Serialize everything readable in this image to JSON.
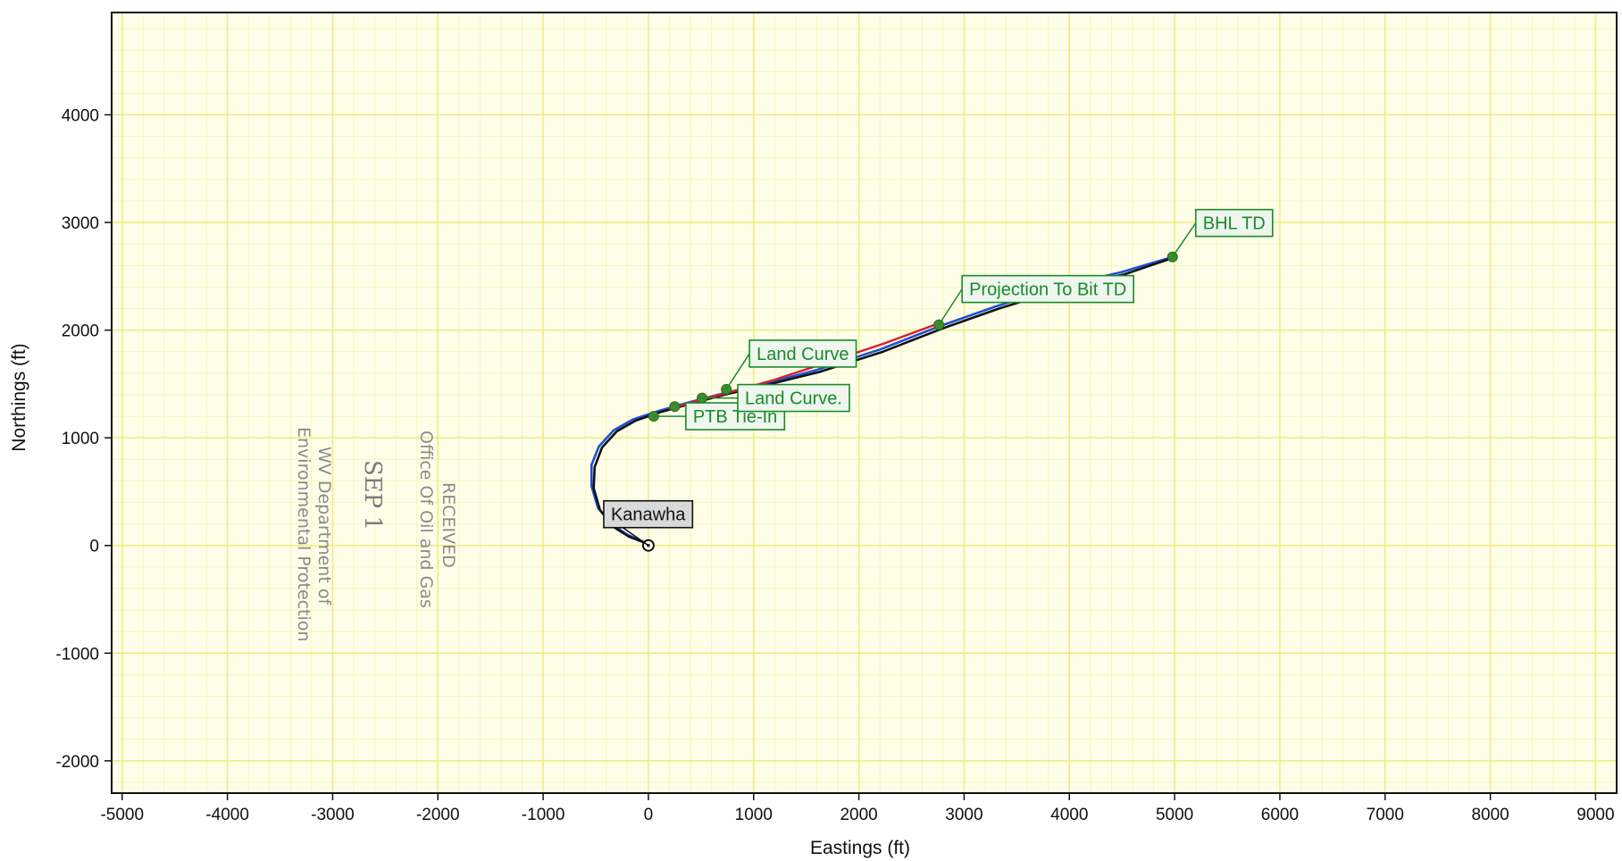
{
  "chart_data": {
    "type": "line",
    "xlabel": "Eastings (ft)",
    "ylabel": "Northings (ft)",
    "xlim": [
      -5100,
      9200
    ],
    "ylim": [
      -2300,
      4950
    ],
    "x_ticks": [
      -5000,
      -4000,
      -3000,
      -2000,
      -1000,
      0,
      1000,
      2000,
      3000,
      4000,
      5000,
      6000,
      7000,
      8000,
      9000
    ],
    "y_ticks": [
      -2000,
      -1000,
      0,
      1000,
      2000,
      3000,
      4000
    ],
    "grid": true,
    "series": [
      {
        "color": "#1d4fd6",
        "points": [
          [
            0,
            0
          ],
          [
            -60,
            40
          ],
          [
            -200,
            100
          ],
          [
            -350,
            200
          ],
          [
            -480,
            350
          ],
          [
            -540,
            550
          ],
          [
            -540,
            750
          ],
          [
            -470,
            920
          ],
          [
            -330,
            1070
          ],
          [
            -150,
            1170
          ],
          [
            100,
            1250
          ],
          [
            350,
            1320
          ],
          [
            700,
            1410
          ],
          [
            1100,
            1500
          ],
          [
            1600,
            1630
          ],
          [
            2200,
            1820
          ],
          [
            2750,
            2030
          ],
          [
            3300,
            2220
          ],
          [
            3900,
            2400
          ],
          [
            4500,
            2540
          ],
          [
            4980,
            2680
          ]
        ]
      },
      {
        "color": "#111111",
        "points": [
          [
            0,
            0
          ],
          [
            -50,
            30
          ],
          [
            -180,
            80
          ],
          [
            -330,
            170
          ],
          [
            -460,
            330
          ],
          [
            -520,
            530
          ],
          [
            -510,
            730
          ],
          [
            -440,
            910
          ],
          [
            -300,
            1060
          ],
          [
            -120,
            1160
          ],
          [
            120,
            1240
          ],
          [
            380,
            1310
          ],
          [
            720,
            1400
          ],
          [
            1120,
            1490
          ],
          [
            1620,
            1610
          ],
          [
            2230,
            1800
          ],
          [
            2780,
            2010
          ],
          [
            3330,
            2200
          ],
          [
            3930,
            2380
          ],
          [
            4530,
            2520
          ],
          [
            4980,
            2670
          ]
        ]
      },
      {
        "color": "#d81f2f",
        "points": [
          [
            200,
            1270
          ],
          [
            450,
            1340
          ],
          [
            800,
            1430
          ],
          [
            1200,
            1540
          ],
          [
            1700,
            1700
          ],
          [
            2250,
            1880
          ],
          [
            2750,
            2060
          ]
        ]
      }
    ],
    "points": [
      {
        "x": 0,
        "y": 0,
        "label": "Kanawha",
        "label_style": "gray"
      },
      {
        "x": 50,
        "y": 1200,
        "label": "PTB Tie-In",
        "label_style": "green"
      },
      {
        "x": 250,
        "y": 1290,
        "label": "",
        "label_style": "none"
      },
      {
        "x": 510,
        "y": 1370,
        "label": "Land Curve.",
        "label_style": "green"
      },
      {
        "x": 740,
        "y": 1450,
        "label": "Land Curve",
        "label_style": "green"
      },
      {
        "x": 2760,
        "y": 2050,
        "label": "Projection To Bit TD",
        "label_style": "green"
      },
      {
        "x": 4980,
        "y": 2680,
        "label": "BHL TD",
        "label_style": "green"
      }
    ],
    "colors": {
      "background": "#fefee8",
      "grid": "#f0ea82",
      "grid_minor": "#f6f2b8",
      "label_green": "#1a8a2a",
      "label_fill": "#eef6ee",
      "label_gray_fill": "#d9d9d9"
    }
  },
  "stamp": {
    "line1": "RECEIVED",
    "line2": "Office Of Oil and Gas",
    "line3": "SEP 1",
    "line4": "WV Department of",
    "line5": "Environmental Protection"
  }
}
